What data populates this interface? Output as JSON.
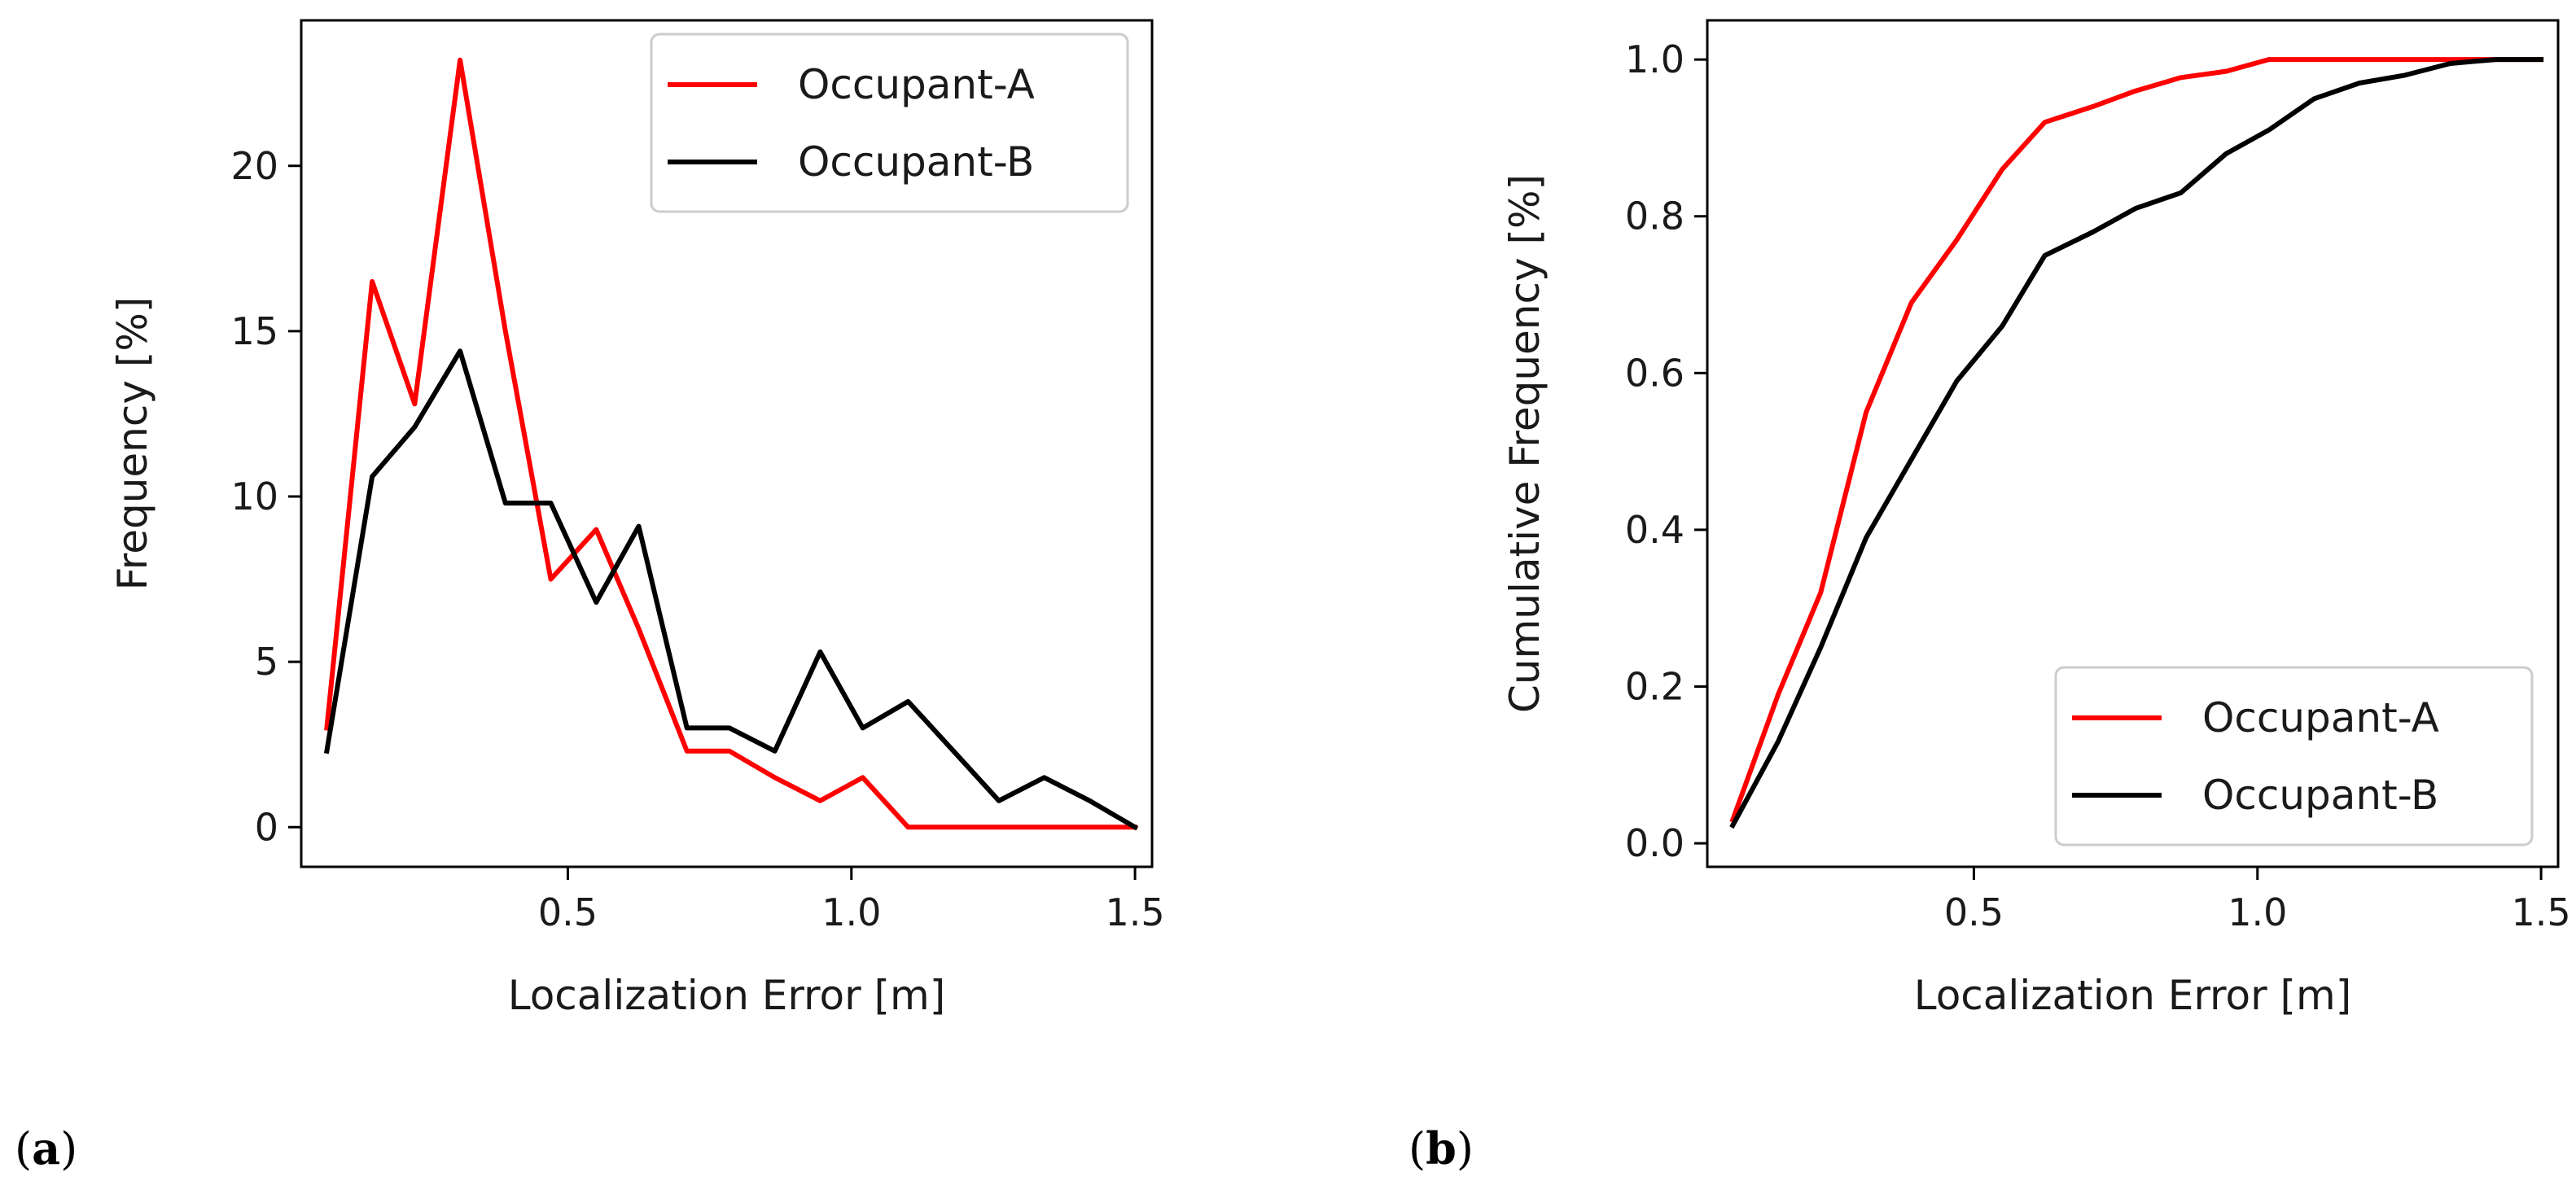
{
  "chart_data": [
    {
      "type": "line",
      "panel_label": {
        "open": "(",
        "letter": "a",
        "close": ")"
      },
      "xlabel": "Localization Error [m]",
      "ylabel": "Frequency [%]",
      "xlim": [
        0.03,
        1.53
      ],
      "ylim": [
        -1.2,
        24.4
      ],
      "xticks": [
        0.5,
        1.0,
        1.5
      ],
      "xtick_labels": [
        "0.5",
        "1.0",
        "1.5"
      ],
      "yticks": [
        0,
        5,
        10,
        15,
        20
      ],
      "ytick_labels": [
        "0",
        "5",
        "10",
        "15",
        "20"
      ],
      "legend_position": "top-right",
      "x": [
        0.075,
        0.155,
        0.23,
        0.31,
        0.39,
        0.47,
        0.55,
        0.625,
        0.71,
        0.785,
        0.865,
        0.945,
        1.02,
        1.1,
        1.18,
        1.26,
        1.34,
        1.42,
        1.5
      ],
      "series": [
        {
          "name": "Occupant-A",
          "color": "#ff0000",
          "values": [
            3.0,
            16.5,
            12.8,
            23.2,
            15.0,
            7.5,
            9.0,
            6.0,
            2.3,
            2.3,
            1.5,
            0.8,
            1.5,
            0.0,
            0.0,
            0.0,
            0.0,
            0.0,
            0.0
          ]
        },
        {
          "name": "Occupant-B",
          "color": "#000000",
          "values": [
            2.3,
            10.6,
            12.1,
            14.4,
            9.8,
            9.8,
            6.8,
            9.1,
            3.0,
            3.0,
            2.3,
            5.3,
            3.0,
            3.8,
            2.3,
            0.8,
            1.5,
            0.8,
            0.0
          ]
        }
      ]
    },
    {
      "type": "line",
      "panel_label": {
        "open": "(",
        "letter": "b",
        "close": ")"
      },
      "xlabel": "Localization Error [m]",
      "ylabel": "Cumulative Frequency [%]",
      "xlim": [
        0.03,
        1.53
      ],
      "ylim": [
        -0.03,
        1.05
      ],
      "xticks": [
        0.5,
        1.0,
        1.5
      ],
      "xtick_labels": [
        "0.5",
        "1.0",
        "1.5"
      ],
      "yticks": [
        0.0,
        0.2,
        0.4,
        0.6,
        0.8,
        1.0
      ],
      "ytick_labels": [
        "0.0",
        "0.2",
        "0.4",
        "0.6",
        "0.8",
        "1.0"
      ],
      "legend_position": "bottom-right",
      "x": [
        0.075,
        0.155,
        0.23,
        0.31,
        0.39,
        0.47,
        0.55,
        0.625,
        0.71,
        0.785,
        0.865,
        0.945,
        1.02,
        1.1,
        1.18,
        1.26,
        1.34,
        1.42,
        1.5
      ],
      "series": [
        {
          "name": "Occupant-A",
          "color": "#ff0000",
          "values": [
            0.03,
            0.19,
            0.32,
            0.55,
            0.69,
            0.77,
            0.86,
            0.92,
            0.94,
            0.96,
            0.977,
            0.985,
            1.0,
            1.0,
            1.0,
            1.0,
            1.0,
            1.0,
            1.0
          ]
        },
        {
          "name": "Occupant-B",
          "color": "#000000",
          "values": [
            0.023,
            0.13,
            0.25,
            0.39,
            0.49,
            0.59,
            0.66,
            0.75,
            0.78,
            0.81,
            0.83,
            0.88,
            0.91,
            0.95,
            0.97,
            0.98,
            0.995,
            1.0,
            1.0
          ]
        }
      ]
    }
  ]
}
